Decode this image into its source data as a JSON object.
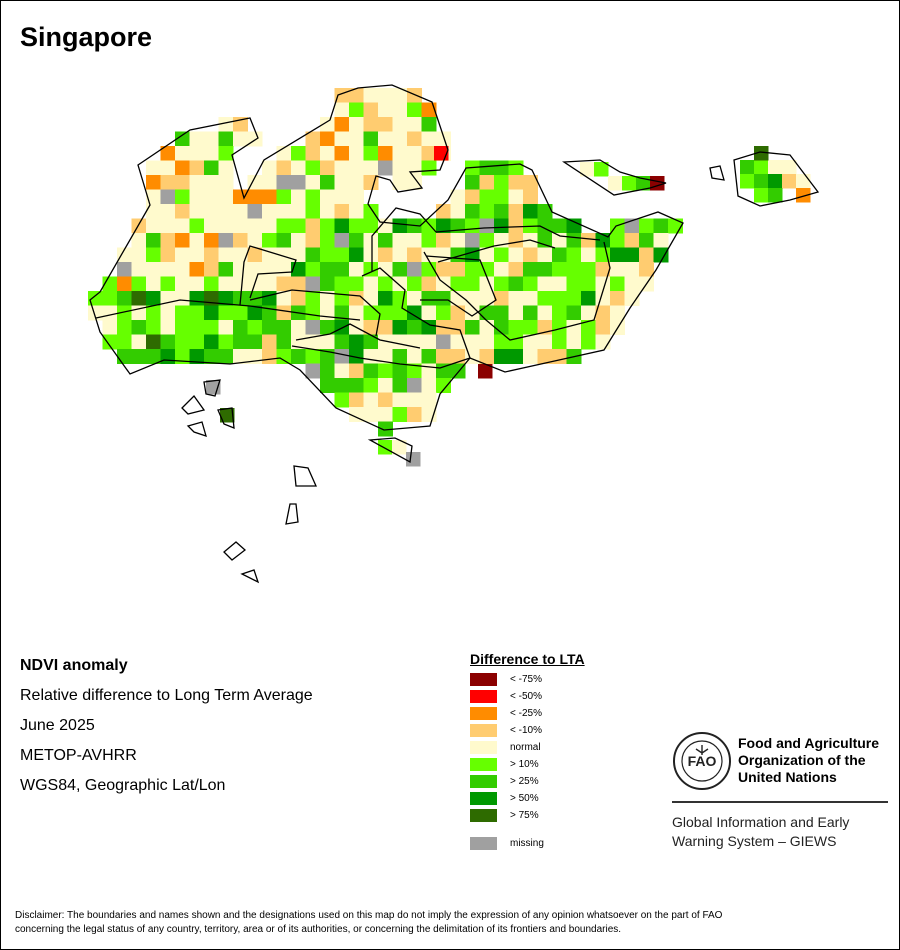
{
  "title": "Singapore",
  "info": {
    "heading": "NDVI anomaly",
    "line1": "Relative difference to Long Term Average",
    "line2": "June 2025",
    "line3": "METOP-AVHRR",
    "line4": "WGS84, Geographic Lat/Lon"
  },
  "legend": {
    "title": "Difference to LTA",
    "items": [
      {
        "label": "< -75%",
        "color": "#8B0000"
      },
      {
        "label": "< -50%",
        "color": "#FF0000"
      },
      {
        "label": "< -25%",
        "color": "#FF8C00"
      },
      {
        "label": "< -10%",
        "color": "#FFCC70"
      },
      {
        "label": "normal",
        "color": "#FFFACD"
      },
      {
        "label": "> 10%",
        "color": "#66FF00"
      },
      {
        "label": "> 25%",
        "color": "#33CC00"
      },
      {
        "label": "> 50%",
        "color": "#009900"
      },
      {
        "label": "> 75%",
        "color": "#2E6B00"
      }
    ],
    "missing": {
      "label": "missing",
      "color": "#A0A0A0"
    }
  },
  "fao": {
    "line1": "Food and Agriculture",
    "line2": "Organization of the",
    "line3": "United Nations",
    "giews1": "Global Information and Early",
    "giews2": "Warning System – GIEWS"
  },
  "disclaimer": {
    "line1": "Disclaimer: The boundaries and names shown and the designations used on this map do not imply the expression of any opinion whatsoever on the part of FAO",
    "line2": "concerning the legal status of any country, territory, area or of its authorities, or concerning the delimitation of its frontiers and boundaries."
  }
}
